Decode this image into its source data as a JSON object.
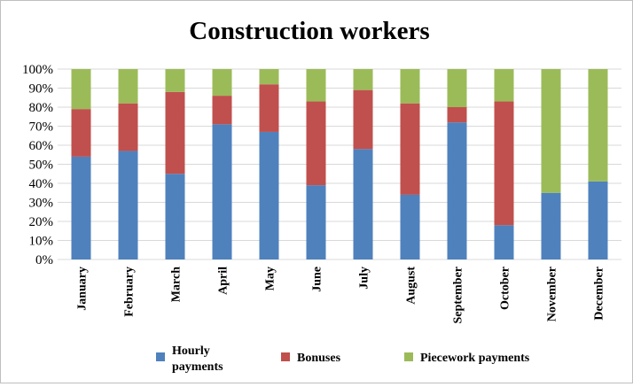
{
  "chart_data": {
    "type": "bar",
    "stacked": true,
    "percent": true,
    "title": "Construction workers",
    "categories": [
      "January",
      "February",
      "March",
      "April",
      "May",
      "June",
      "July",
      "August",
      "September",
      "October",
      "November",
      "December"
    ],
    "series": [
      {
        "name": "Hourly payments",
        "legend_lines": [
          "Hourly",
          "payments"
        ],
        "color": "#4f81bd",
        "values": [
          54,
          57,
          45,
          71,
          67,
          39,
          58,
          34,
          72,
          18,
          35,
          41
        ]
      },
      {
        "name": "Bonuses",
        "legend_lines": [
          "Bonuses"
        ],
        "color": "#c0504d",
        "values": [
          25,
          25,
          43,
          15,
          25,
          44,
          31,
          48,
          8,
          65,
          0,
          0
        ]
      },
      {
        "name": "Piecework payments",
        "legend_lines": [
          "Piecework payments"
        ],
        "color": "#9bbb59",
        "values": [
          21,
          18,
          12,
          14,
          8,
          17,
          11,
          18,
          20,
          17,
          65,
          59
        ]
      }
    ],
    "ylim": [
      0,
      100
    ],
    "yticks": [
      "0%",
      "10%",
      "20%",
      "30%",
      "40%",
      "50%",
      "60%",
      "70%",
      "80%",
      "90%",
      "100%"
    ],
    "grid": true,
    "legend": "bottom"
  }
}
